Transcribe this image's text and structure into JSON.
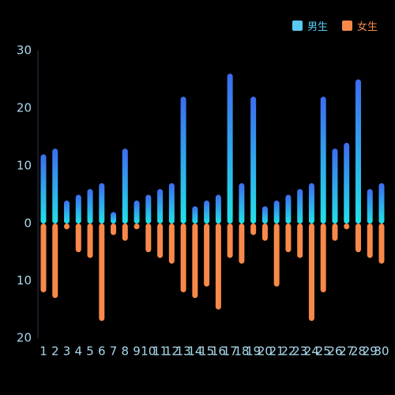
{
  "chart_data": {
    "type": "bar",
    "categories": [
      "1",
      "2",
      "3",
      "4",
      "5",
      "6",
      "7",
      "8",
      "9",
      "10",
      "11",
      "12",
      "13",
      "14",
      "15",
      "16",
      "17",
      "18",
      "19",
      "20",
      "21",
      "22",
      "23",
      "24",
      "25",
      "26",
      "27",
      "28",
      "29",
      "30"
    ],
    "series": [
      {
        "name": "男生",
        "values": [
          12,
          13,
          4,
          5,
          6,
          7,
          2,
          13,
          4,
          5,
          6,
          7,
          22,
          3,
          4,
          5,
          26,
          7,
          22,
          3,
          4,
          5,
          6,
          7,
          22,
          13,
          14,
          25,
          6,
          7
        ]
      },
      {
        "name": "女生",
        "values": [
          12,
          13,
          1,
          5,
          6,
          17,
          2,
          3,
          1,
          5,
          6,
          7,
          12,
          13,
          11,
          15,
          6,
          7,
          2,
          3,
          11,
          5,
          6,
          17,
          12,
          3,
          1,
          5,
          6,
          7
        ]
      }
    ],
    "y_axis": {
      "upper_ticks": [
        "30",
        "20",
        "10",
        "0"
      ],
      "lower_ticks": [
        "10",
        "20"
      ],
      "upper_max": 30,
      "lower_max": 20
    },
    "legend_position": "top-right",
    "grid": false
  },
  "colors": {
    "male_top": "#3d6cf0",
    "male_bottom": "#22e2e8",
    "female": "#f8894a",
    "legend_male": "#58c8f5",
    "legend_female": "#f8894a",
    "tick_label": "#a8d8ea",
    "axis_line": "#2b3a55"
  }
}
